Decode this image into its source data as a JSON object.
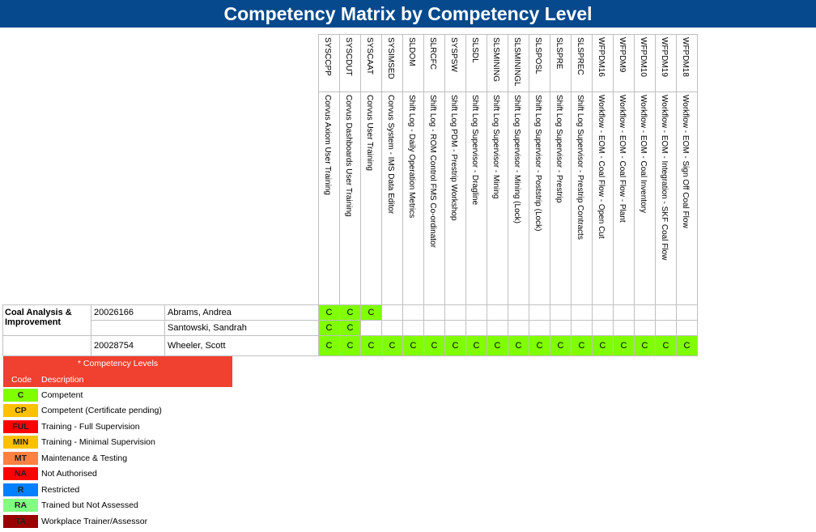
{
  "title": "Competency Matrix by Competency Level",
  "competencies": [
    {
      "code": "SYSCCPP",
      "desc": "Corvus Axiom User Training"
    },
    {
      "code": "SYSCDUT",
      "desc": "Corvus Dashboards User Training"
    },
    {
      "code": "SYSCAAT",
      "desc": "Corvus User Training"
    },
    {
      "code": "SYSIMSED",
      "desc": "Corvus System - IMS Data Editor"
    },
    {
      "code": "SLDOM",
      "desc": "Shift Log - Daily Operation Metrics"
    },
    {
      "code": "SLRCFC",
      "desc": "Shift Log - ROM Control FMS Co-ordinator"
    },
    {
      "code": "SYSPSW",
      "desc": "Shift Log PDM - Prestrip Workshop"
    },
    {
      "code": "SLSDL",
      "desc": "Shift Log Supervisor - Dragline"
    },
    {
      "code": "SLSMINING",
      "desc": "Shift Log Supervisor - Mining"
    },
    {
      "code": "SLSMININGL",
      "desc": "Shift Log Supervisor - Mining (Lock)"
    },
    {
      "code": "SLSPOSL",
      "desc": "Shift Log Supervisor - Poststrip (Lock)"
    },
    {
      "code": "SLSPRE",
      "desc": "Shift Log Supervisor - Prestrip"
    },
    {
      "code": "SLSPREC",
      "desc": "Shift Log Supervisor - Prestrip Contracts"
    },
    {
      "code": "WFPDM16",
      "desc": "Workflow - EOM - Coal Flow - Open Cut"
    },
    {
      "code": "WFPDM9",
      "desc": "Workflow - EOM - Coal Flow - Plant"
    },
    {
      "code": "WFPDM10",
      "desc": "Workflow - EOM - Coal Inventory"
    },
    {
      "code": "WFPDM19",
      "desc": "Workflow - EOM - Integration - SKF Coal Flow"
    },
    {
      "code": "WFPDM18",
      "desc": "Workflow - EOM - Sign Off Coal Flow"
    }
  ],
  "group": "Coal Analysis & Improvement",
  "employees": [
    {
      "id": "20026166",
      "name": "Abrams, Andrea",
      "levels": [
        "C",
        "C",
        "C",
        "",
        "",
        "",
        "",
        "",
        "",
        "",
        "",
        "",
        "",
        "",
        "",
        "",
        "",
        ""
      ]
    },
    {
      "id": "",
      "name": "Santowski, Sandrah",
      "levels": [
        "C",
        "C",
        "",
        "",
        "",
        "",
        "",
        "",
        "",
        "",
        "",
        "",
        "",
        "",
        "",
        "",
        "",
        ""
      ]
    },
    {
      "id": "20028754",
      "name": "Wheeler, Scott",
      "levels": [
        "C",
        "C",
        "C",
        "C",
        "C",
        "C",
        "C",
        "C",
        "C",
        "C",
        "C",
        "C",
        "C",
        "C",
        "C",
        "C",
        "C",
        "C"
      ]
    }
  ],
  "legend": {
    "title": "* Competency Levels",
    "code_header": "Code",
    "desc_header": "Description",
    "items": [
      {
        "code": "C",
        "desc": "Competent",
        "color": "#80ff00"
      },
      {
        "code": "CP",
        "desc": "Competent (Certificate pending)",
        "color": "#ffc000"
      },
      {
        "code": "FUL",
        "desc": "Training - Full Supervision",
        "color": "#ff0000"
      },
      {
        "code": "MIN",
        "desc": "Training - Minimal Supervision",
        "color": "#ffc000"
      },
      {
        "code": "MT",
        "desc": "Maintenance & Testing",
        "color": "#ff8040"
      },
      {
        "code": "NA",
        "desc": "Not Authorised",
        "color": "#ff0000"
      },
      {
        "code": "R",
        "desc": "Restricted",
        "color": "#0080ff"
      },
      {
        "code": "RA",
        "desc": "Trained but Not Assessed",
        "color": "#80ff80"
      },
      {
        "code": "TA",
        "desc": "Workplace Trainer/Assessor",
        "color": "#990000"
      }
    ]
  },
  "colors": {
    "header": "#06498c",
    "legend_header": "#f04030",
    "competent": "#80ff00"
  }
}
